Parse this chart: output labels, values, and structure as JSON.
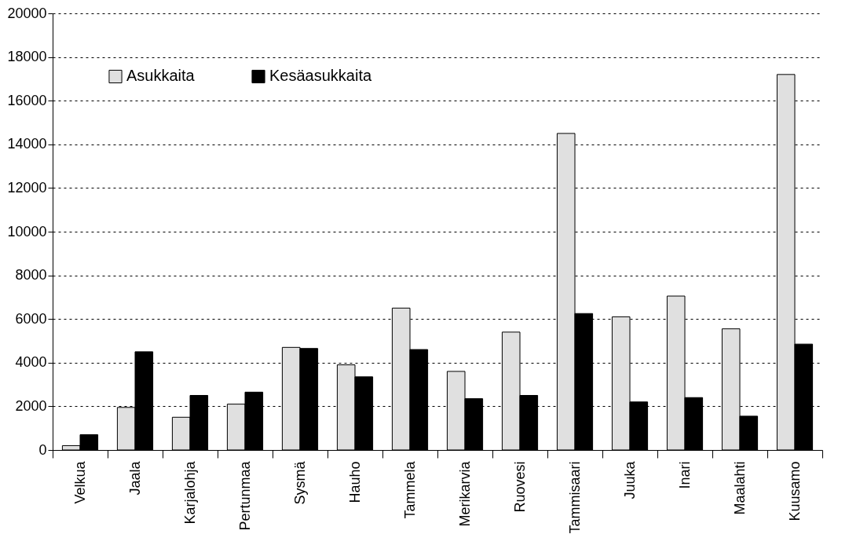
{
  "chart_data": {
    "type": "bar",
    "categories": [
      "Velkua",
      "Jaala",
      "Karjalohja",
      "Pertunmaa",
      "Sysmä",
      "Hauho",
      "Tammela",
      "Merikarvia",
      "Ruovesi",
      "Tammisaari",
      "Juuka",
      "Inari",
      "Maalahti",
      "Kuusamo"
    ],
    "series": [
      {
        "name": "Asukkaita",
        "color": "#e0e0e0",
        "values": [
          200,
          1950,
          1500,
          2100,
          4700,
          3900,
          6500,
          3600,
          5400,
          14500,
          6100,
          7050,
          5550,
          17200
        ]
      },
      {
        "name": "Kesäasukkaita",
        "color": "#000000",
        "values": [
          700,
          4500,
          2500,
          2650,
          4650,
          3350,
          4600,
          2350,
          2500,
          6250,
          2200,
          2400,
          1550,
          4850
        ]
      }
    ],
    "ylim": [
      0,
      20000
    ],
    "yticks": [
      0,
      2000,
      4000,
      6000,
      8000,
      10000,
      12000,
      14000,
      16000,
      18000,
      20000
    ],
    "grid": "y",
    "legend": "top left"
  }
}
